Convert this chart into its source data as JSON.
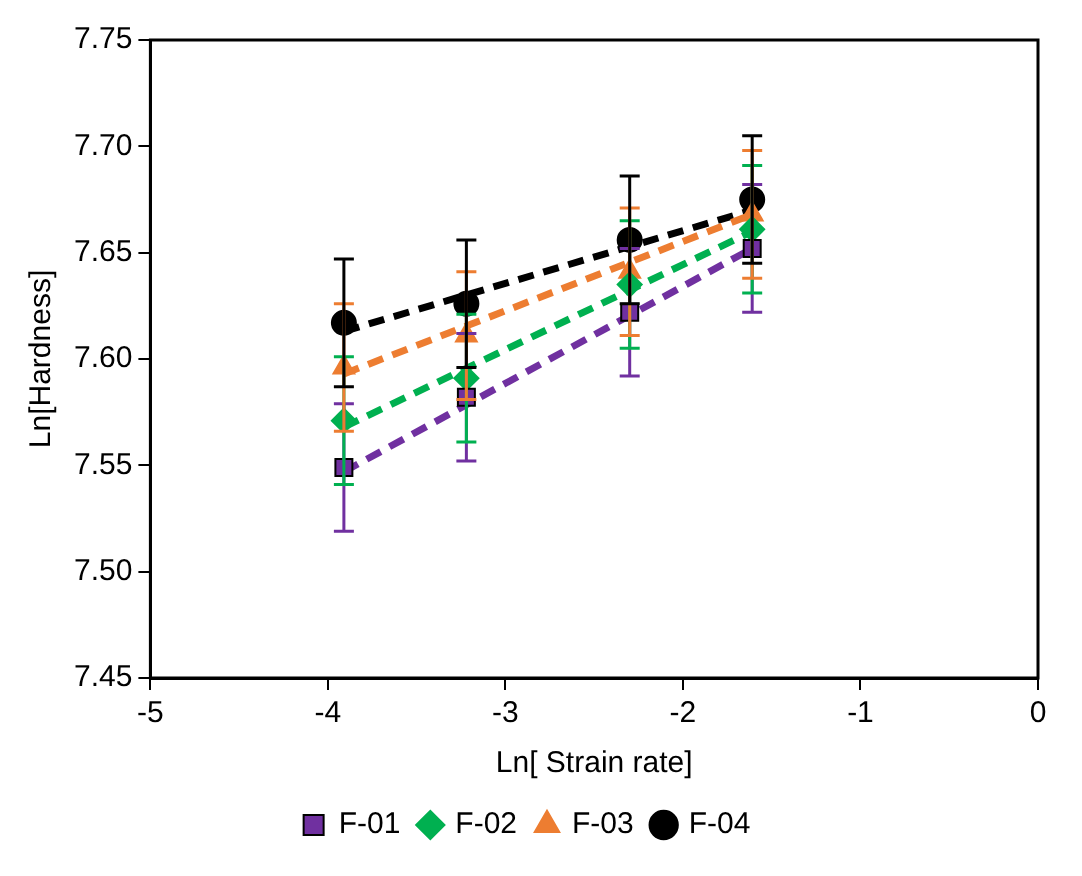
{
  "chart_data": {
    "type": "scatter",
    "xlabel": "Ln[ Strain rate]",
    "ylabel": "Ln[Hardness]",
    "xlim": [
      -5,
      0
    ],
    "xticks": [
      -5,
      -4,
      -3,
      -2,
      -1,
      0
    ],
    "ylim": [
      7.45,
      7.75
    ],
    "yticks": [
      {
        "value": 7.45,
        "label": "7.45"
      },
      {
        "value": 7.5,
        "label": "7.50"
      },
      {
        "value": 7.55,
        "label": "7.55"
      },
      {
        "value": 7.6,
        "label": "7.60"
      },
      {
        "value": 7.65,
        "label": "7.65"
      },
      {
        "value": 7.7,
        "label": "7.70"
      },
      {
        "value": 7.75,
        "label": "7.75"
      }
    ],
    "grid": false,
    "legend": "bottom",
    "series": [
      {
        "name": "F-01",
        "color": "#7030a0",
        "marker": "square",
        "x": [
          -3.91,
          -3.22,
          -2.3,
          -1.61
        ],
        "values": [
          7.549,
          7.582,
          7.622,
          7.652
        ],
        "errors": [
          0.03,
          0.03,
          0.03,
          0.03
        ]
      },
      {
        "name": "F-02",
        "color": "#00b050",
        "marker": "diamond",
        "x": [
          -3.91,
          -3.22,
          -2.3,
          -1.61
        ],
        "values": [
          7.571,
          7.591,
          7.635,
          7.661
        ],
        "errors": [
          0.03,
          0.03,
          0.03,
          0.03
        ]
      },
      {
        "name": "F-03",
        "color": "#ed7d31",
        "marker": "triangle",
        "x": [
          -3.91,
          -3.22,
          -2.3,
          -1.61
        ],
        "values": [
          7.596,
          7.611,
          7.641,
          7.668
        ],
        "errors": [
          0.03,
          0.03,
          0.03,
          0.03
        ]
      },
      {
        "name": "F-04",
        "color": "#000000",
        "marker": "circle",
        "x": [
          -3.91,
          -3.22,
          -2.3,
          -1.61
        ],
        "values": [
          7.617,
          7.626,
          7.656,
          7.675
        ],
        "errors": [
          0.03,
          0.03,
          0.03,
          0.03
        ]
      },
      {
        "type": "line",
        "color": "#7030a0",
        "line_style": "dashed",
        "marker": "none",
        "x": [
          -3.91,
          -1.61
        ],
        "values": [
          7.547,
          7.652
        ]
      },
      {
        "type": "line",
        "color": "#00b050",
        "line_style": "dashed",
        "marker": "none",
        "x": [
          -3.91,
          -1.61
        ],
        "values": [
          7.568,
          7.66
        ]
      },
      {
        "type": "line",
        "color": "#ed7d31",
        "line_style": "dashed",
        "marker": "none",
        "x": [
          -3.91,
          -1.61
        ],
        "values": [
          7.593,
          7.668
        ]
      },
      {
        "type": "line",
        "color": "#000000",
        "line_style": "dashed",
        "marker": "none",
        "x": [
          -3.91,
          -1.61
        ],
        "values": [
          7.613,
          7.67
        ]
      }
    ]
  }
}
